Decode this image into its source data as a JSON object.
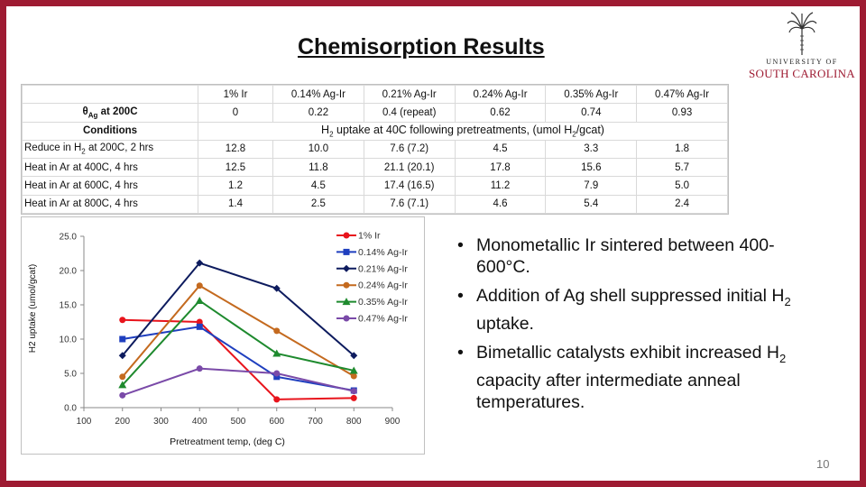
{
  "slide": {
    "title": "Chemisorption Results",
    "page_number": "10",
    "logo": {
      "line1": "UNIVERSITY OF",
      "line2": "SOUTH CAROLINA",
      "icon": "palmetto-tree-icon"
    },
    "border_color": "#9e1b32"
  },
  "table": {
    "header": [
      "",
      "1% Ir",
      "0.14% Ag-Ir",
      "0.21% Ag-Ir",
      "0.24% Ag-Ir",
      "0.35% Ag-Ir",
      "0.47% Ag-Ir"
    ],
    "theta_row": [
      "θAg at 200C",
      "0",
      "0.22",
      "0.4   (repeat)",
      "0.62",
      "0.74",
      "0.93"
    ],
    "conditions_label": "Conditions",
    "uptake_header": "H2 uptake at 40C following pretreatments, (umol H2/gcat)",
    "rows": [
      [
        "Reduce in H2 at 200C, 2 hrs",
        "12.8",
        "10.0",
        "7.6   (7.2)",
        "4.5",
        "3.3",
        "1.8"
      ],
      [
        "Heat in Ar at 400C, 4 hrs",
        "12.5",
        "11.8",
        "21.1   (20.1)",
        "17.8",
        "15.6",
        "5.7"
      ],
      [
        "Heat in Ar at 600C, 4 hrs",
        "1.2",
        "4.5",
        "17.4   (16.5)",
        "11.2",
        "7.9",
        "5.0"
      ],
      [
        "Heat in Ar at 800C, 4 hrs",
        "1.4",
        "2.5",
        "7.6   (7.1)",
        "4.6",
        "5.4",
        "2.4"
      ]
    ]
  },
  "bullets": [
    "Monometallic Ir sintered between 400-600°C.",
    "Addition of Ag shell suppressed initial H2 uptake.",
    "Bimetallic catalysts exhibit increased H2 capacity after intermediate anneal temperatures."
  ],
  "chart_data": {
    "type": "line",
    "title": "",
    "xlabel": "Pretreatment temp, (deg C)",
    "ylabel": "H2 uptake (umol/gcat)",
    "xlim": [
      100,
      900
    ],
    "ylim": [
      0,
      25
    ],
    "xticks": [
      "100",
      "200",
      "300",
      "400",
      "500",
      "600",
      "700",
      "800",
      "900"
    ],
    "yticks": [
      "0.0",
      "5.0",
      "10.0",
      "15.0",
      "20.0",
      "25.0"
    ],
    "x": [
      200,
      400,
      600,
      800
    ],
    "legend_position": "top-right",
    "grid": false,
    "series": [
      {
        "name": "1% Ir",
        "color": "#e8141c",
        "marker": "circle",
        "values": [
          12.8,
          12.5,
          1.2,
          1.4
        ]
      },
      {
        "name": "0.14% Ag-Ir",
        "color": "#1f3fbf",
        "marker": "square",
        "values": [
          10.0,
          11.8,
          4.5,
          2.5
        ]
      },
      {
        "name": "0.21% Ag-Ir",
        "color": "#0d1b5e",
        "marker": "diamond",
        "values": [
          7.6,
          21.1,
          17.4,
          7.6
        ]
      },
      {
        "name": "0.24% Ag-Ir",
        "color": "#c46a1f",
        "marker": "circle",
        "values": [
          4.5,
          17.8,
          11.2,
          4.6
        ]
      },
      {
        "name": "0.35% Ag-Ir",
        "color": "#1e8a2e",
        "marker": "triangle",
        "values": [
          3.3,
          15.6,
          7.9,
          5.4
        ]
      },
      {
        "name": "0.47% Ag-Ir",
        "color": "#7a4aa8",
        "marker": "circle",
        "values": [
          1.8,
          5.7,
          5.0,
          2.4
        ]
      }
    ]
  }
}
